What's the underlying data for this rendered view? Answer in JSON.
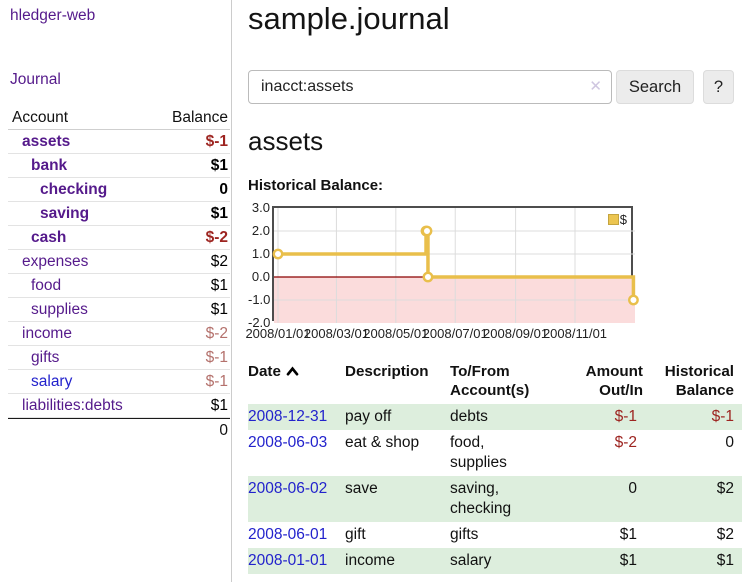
{
  "page": {
    "brand": "hledger-web",
    "nav_journal": "Journal"
  },
  "sidebar": {
    "headers": {
      "account": "Account",
      "balance": "Balance"
    },
    "rows": [
      {
        "account": "assets",
        "balance": "$-1",
        "indent": 1,
        "bold": true,
        "neg": "strong",
        "link": "purple"
      },
      {
        "account": "bank",
        "balance": "$1",
        "indent": 2,
        "bold": true,
        "neg": "none",
        "link": "purple"
      },
      {
        "account": "checking",
        "balance": "0",
        "indent": 3,
        "bold": true,
        "neg": "none",
        "link": "purple"
      },
      {
        "account": "saving",
        "balance": "$1",
        "indent": 3,
        "bold": true,
        "neg": "none",
        "link": "purple"
      },
      {
        "account": "cash",
        "balance": "$-2",
        "indent": 2,
        "bold": true,
        "neg": "strong",
        "link": "purple"
      },
      {
        "account": "expenses",
        "balance": "$2",
        "indent": 1,
        "bold": false,
        "neg": "none",
        "link": "purple"
      },
      {
        "account": "food",
        "balance": "$1",
        "indent": 2,
        "bold": false,
        "neg": "none",
        "link": "purple"
      },
      {
        "account": "supplies",
        "balance": "$1",
        "indent": 2,
        "bold": false,
        "neg": "none",
        "link": "purple"
      },
      {
        "account": "income",
        "balance": "$-2",
        "indent": 1,
        "bold": false,
        "neg": "muted",
        "link": "purple"
      },
      {
        "account": "gifts",
        "balance": "$-1",
        "indent": 2,
        "bold": false,
        "neg": "muted",
        "link": "purple"
      },
      {
        "account": "salary",
        "balance": "$-1",
        "indent": 2,
        "bold": false,
        "neg": "muted",
        "link": "blue"
      },
      {
        "account": "liabilities:debts",
        "balance": "$1",
        "indent": 1,
        "bold": false,
        "neg": "none",
        "link": "purple"
      }
    ],
    "total": "0"
  },
  "main": {
    "title": "sample.journal",
    "search": {
      "value": "inacct:assets",
      "clear_icon": "✕",
      "button_label": "Search",
      "help_label": "?"
    },
    "account_heading": "assets",
    "chart_heading": "Historical Balance:"
  },
  "register": {
    "headers": {
      "date": "Date",
      "description": "Description",
      "accounts": "To/From Account(s)",
      "amount": "Amount Out/In",
      "balance": "Historical Balance"
    },
    "rows": [
      {
        "date": "2008-12-31",
        "description": "pay off",
        "accounts": "debts",
        "amount": "$-1",
        "balance": "$-1",
        "amount_neg": true,
        "balance_neg": true
      },
      {
        "date": "2008-06-03",
        "description": "eat & shop",
        "accounts": "food, supplies",
        "amount": "$-2",
        "balance": "0",
        "amount_neg": true,
        "balance_neg": false
      },
      {
        "date": "2008-06-02",
        "description": "save",
        "accounts": "saving, checking",
        "amount": "0",
        "balance": "$2",
        "amount_neg": false,
        "balance_neg": false
      },
      {
        "date": "2008-06-01",
        "description": "gift",
        "accounts": "gifts",
        "amount": "$1",
        "balance": "$2",
        "amount_neg": false,
        "balance_neg": false
      },
      {
        "date": "2008-01-01",
        "description": "income",
        "accounts": "salary",
        "amount": "$1",
        "balance": "$1",
        "amount_neg": false,
        "balance_neg": false
      }
    ]
  },
  "chart_data": {
    "type": "line",
    "title": "Historical Balance",
    "step": "after",
    "legend": [
      {
        "label": "$",
        "color": "#ecc550"
      }
    ],
    "series": [
      {
        "name": "$",
        "points": [
          [
            "2008-01-01",
            1.0
          ],
          [
            "2008-06-01",
            2.0
          ],
          [
            "2008-06-02",
            2.0
          ],
          [
            "2008-06-03",
            0.0
          ],
          [
            "2008-12-31",
            -1.0
          ]
        ]
      }
    ],
    "y_ticks": [
      3.0,
      2.0,
      1.0,
      0.0,
      -1.0,
      -2.0
    ],
    "x_ticks": [
      "2008/01/01",
      "2008/03/01",
      "2008/05/01",
      "2008/07/01",
      "2008/09/01",
      "2008/11/01"
    ],
    "ylim": [
      -2.0,
      3.0
    ],
    "grid": true,
    "negative_region_fill": "#fbdcdc",
    "zero_line_color": "#8b0000",
    "line_color": "#e9bf4b",
    "legend_position": "top-right"
  }
}
